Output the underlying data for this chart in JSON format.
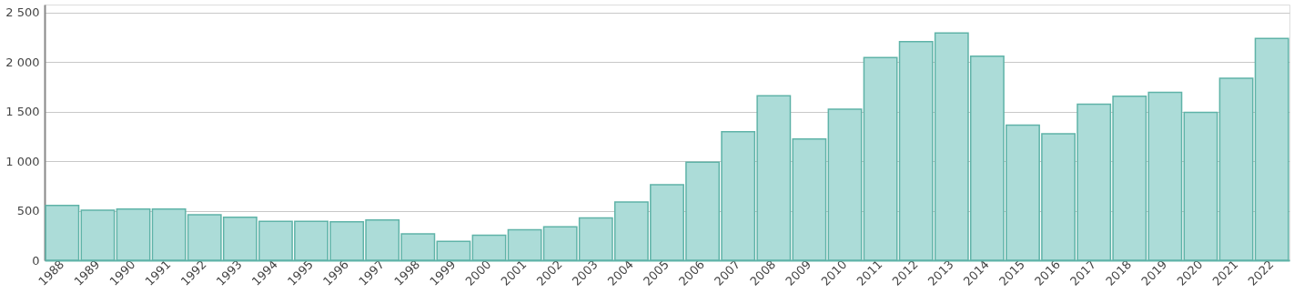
{
  "chart_data": {
    "type": "bar",
    "categories": [
      "1988",
      "1989",
      "1990",
      "1991",
      "1992",
      "1993",
      "1994",
      "1995",
      "1996",
      "1997",
      "1998",
      "1999",
      "2000",
      "2001",
      "2002",
      "2003",
      "2004",
      "2005",
      "2006",
      "2007",
      "2008",
      "2009",
      "2010",
      "2011",
      "2012",
      "2013",
      "2014",
      "2015",
      "2016",
      "2017",
      "2018",
      "2019",
      "2020",
      "2021",
      "2022"
    ],
    "values": [
      553,
      505,
      516,
      516,
      458,
      434,
      393,
      393,
      389,
      406,
      266,
      191,
      253,
      307,
      338,
      427,
      587,
      762,
      990,
      1298,
      1660,
      1223,
      1523,
      2046,
      2206,
      2292,
      2059,
      1363,
      1277,
      1574,
      1656,
      1694,
      1492,
      1837,
      2237
    ],
    "color": "#acdcd8",
    "ylim": [
      0,
      2580
    ],
    "yticks": [
      {
        "value": 0,
        "label": "0"
      },
      {
        "value": 500,
        "label": "500"
      },
      {
        "value": 1000,
        "label": "1 000"
      },
      {
        "value": 1500,
        "label": "1 500"
      },
      {
        "value": 2000,
        "label": "2 000"
      },
      {
        "value": 2500,
        "label": "2 500"
      }
    ],
    "grid": "y"
  }
}
